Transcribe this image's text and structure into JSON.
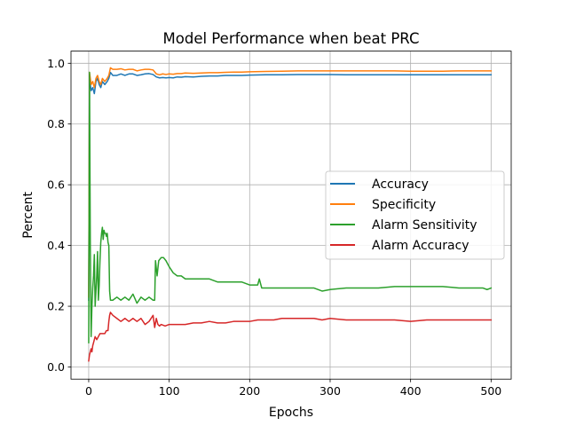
{
  "chart_data": {
    "type": "line",
    "title": "Model Performance when beat PRC",
    "xlabel": "Epochs",
    "ylabel": "Percent",
    "xlim": [
      -22,
      525
    ],
    "ylim": [
      -0.04,
      1.04
    ],
    "xticks": [
      0,
      100,
      200,
      300,
      400,
      500
    ],
    "yticks": [
      0.0,
      0.2,
      0.4,
      0.6,
      0.8,
      1.0
    ],
    "xtick_labels": [
      "0",
      "100",
      "200",
      "300",
      "400",
      "500"
    ],
    "ytick_labels": [
      "0.0",
      "0.2",
      "0.4",
      "0.6",
      "0.8",
      "1.0"
    ],
    "grid": true,
    "legend_position": "center-right",
    "series": [
      {
        "name": "Accuracy",
        "color": "#1f77b4",
        "x": [
          0,
          1,
          2,
          3,
          5,
          7,
          9,
          11,
          13,
          15,
          17,
          20,
          23,
          25,
          27,
          30,
          35,
          40,
          45,
          50,
          55,
          60,
          65,
          70,
          75,
          80,
          84,
          88,
          92,
          96,
          100,
          105,
          110,
          115,
          120,
          130,
          140,
          150,
          160,
          170,
          180,
          190,
          200,
          220,
          240,
          260,
          280,
          300,
          320,
          340,
          360,
          380,
          400,
          420,
          440,
          460,
          480,
          500
        ],
        "values": [
          0.22,
          0.96,
          0.93,
          0.91,
          0.92,
          0.9,
          0.94,
          0.95,
          0.93,
          0.92,
          0.94,
          0.93,
          0.94,
          0.95,
          0.97,
          0.96,
          0.96,
          0.965,
          0.96,
          0.965,
          0.965,
          0.96,
          0.962,
          0.965,
          0.966,
          0.963,
          0.955,
          0.952,
          0.953,
          0.952,
          0.953,
          0.952,
          0.955,
          0.954,
          0.956,
          0.955,
          0.957,
          0.958,
          0.958,
          0.96,
          0.96,
          0.96,
          0.961,
          0.962,
          0.962,
          0.963,
          0.963,
          0.963,
          0.962,
          0.962,
          0.962,
          0.962,
          0.962,
          0.962,
          0.962,
          0.962,
          0.962,
          0.962
        ]
      },
      {
        "name": "Specificity",
        "color": "#ff7f0e",
        "x": [
          0,
          1,
          2,
          3,
          5,
          7,
          9,
          11,
          13,
          15,
          17,
          20,
          23,
          25,
          27,
          30,
          35,
          40,
          45,
          50,
          55,
          60,
          65,
          70,
          75,
          80,
          84,
          88,
          92,
          96,
          100,
          105,
          110,
          115,
          120,
          130,
          140,
          150,
          160,
          170,
          180,
          190,
          200,
          220,
          240,
          260,
          280,
          300,
          320,
          340,
          360,
          380,
          400,
          420,
          440,
          460,
          480,
          500
        ],
        "values": [
          0.23,
          0.97,
          0.95,
          0.93,
          0.94,
          0.92,
          0.95,
          0.96,
          0.94,
          0.93,
          0.95,
          0.94,
          0.95,
          0.96,
          0.985,
          0.98,
          0.98,
          0.982,
          0.978,
          0.98,
          0.98,
          0.975,
          0.978,
          0.98,
          0.98,
          0.978,
          0.965,
          0.962,
          0.965,
          0.963,
          0.965,
          0.964,
          0.966,
          0.966,
          0.968,
          0.967,
          0.968,
          0.969,
          0.969,
          0.97,
          0.971,
          0.971,
          0.972,
          0.973,
          0.974,
          0.975,
          0.975,
          0.975,
          0.975,
          0.975,
          0.975,
          0.975,
          0.974,
          0.974,
          0.974,
          0.975,
          0.975,
          0.975
        ]
      },
      {
        "name": "Alarm Sensitivity",
        "color": "#2ca02c",
        "x": [
          0,
          1,
          2,
          3,
          4,
          5,
          6,
          7,
          8,
          9,
          10,
          11,
          12,
          13,
          14,
          15,
          16,
          17,
          18,
          19,
          20,
          21,
          22,
          23,
          24,
          25,
          26,
          27,
          30,
          35,
          40,
          45,
          50,
          55,
          60,
          65,
          70,
          75,
          80,
          82,
          83,
          85,
          87,
          90,
          93,
          96,
          100,
          105,
          110,
          115,
          120,
          130,
          140,
          150,
          160,
          170,
          180,
          190,
          200,
          210,
          212,
          215,
          220,
          230,
          240,
          250,
          260,
          270,
          280,
          290,
          300,
          320,
          340,
          360,
          380,
          400,
          420,
          440,
          460,
          480,
          490,
          495,
          500
        ],
        "values": [
          0.08,
          0.97,
          0.4,
          0.1,
          0.2,
          0.26,
          0.3,
          0.37,
          0.2,
          0.25,
          0.3,
          0.38,
          0.22,
          0.27,
          0.35,
          0.41,
          0.44,
          0.46,
          0.42,
          0.45,
          0.44,
          0.44,
          0.43,
          0.44,
          0.41,
          0.4,
          0.25,
          0.22,
          0.22,
          0.23,
          0.22,
          0.23,
          0.22,
          0.24,
          0.21,
          0.23,
          0.22,
          0.23,
          0.22,
          0.22,
          0.35,
          0.3,
          0.35,
          0.36,
          0.36,
          0.35,
          0.33,
          0.31,
          0.3,
          0.3,
          0.29,
          0.29,
          0.29,
          0.29,
          0.28,
          0.28,
          0.28,
          0.28,
          0.27,
          0.27,
          0.29,
          0.26,
          0.26,
          0.26,
          0.26,
          0.26,
          0.26,
          0.26,
          0.26,
          0.25,
          0.255,
          0.26,
          0.26,
          0.26,
          0.265,
          0.265,
          0.265,
          0.265,
          0.26,
          0.26,
          0.26,
          0.255,
          0.26
        ]
      },
      {
        "name": "Alarm Accuracy",
        "color": "#d62728",
        "x": [
          0,
          1,
          2,
          3,
          4,
          5,
          6,
          7,
          8,
          10,
          12,
          14,
          16,
          18,
          20,
          22,
          24,
          25,
          26,
          27,
          30,
          35,
          40,
          45,
          50,
          55,
          60,
          65,
          70,
          75,
          80,
          82,
          84,
          86,
          88,
          90,
          95,
          100,
          110,
          120,
          130,
          140,
          150,
          160,
          170,
          180,
          190,
          200,
          210,
          220,
          230,
          240,
          250,
          260,
          270,
          280,
          290,
          300,
          320,
          340,
          360,
          380,
          400,
          420,
          440,
          460,
          480,
          500
        ],
        "values": [
          0.02,
          0.04,
          0.05,
          0.06,
          0.05,
          0.07,
          0.08,
          0.09,
          0.1,
          0.09,
          0.1,
          0.11,
          0.11,
          0.11,
          0.11,
          0.12,
          0.12,
          0.15,
          0.17,
          0.18,
          0.17,
          0.16,
          0.15,
          0.16,
          0.15,
          0.16,
          0.15,
          0.16,
          0.14,
          0.15,
          0.17,
          0.13,
          0.16,
          0.14,
          0.135,
          0.14,
          0.135,
          0.14,
          0.14,
          0.14,
          0.145,
          0.145,
          0.15,
          0.145,
          0.145,
          0.15,
          0.15,
          0.15,
          0.155,
          0.155,
          0.155,
          0.16,
          0.16,
          0.16,
          0.16,
          0.16,
          0.155,
          0.16,
          0.155,
          0.155,
          0.155,
          0.155,
          0.15,
          0.155,
          0.155,
          0.155,
          0.155,
          0.155
        ]
      }
    ]
  }
}
